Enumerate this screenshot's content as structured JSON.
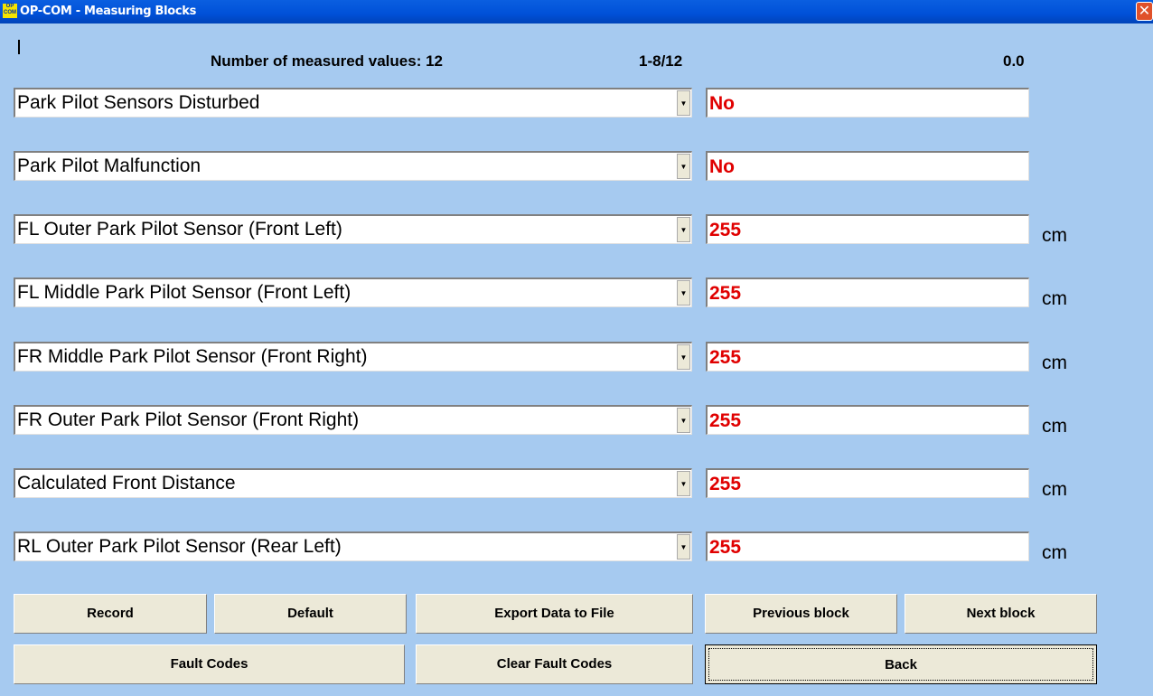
{
  "window": {
    "title": "OP-COM - Measuring Blocks",
    "icon_text": "OP COM",
    "close_icon": "close-icon"
  },
  "header": {
    "count_label": "Number of measured values: 12",
    "page_range": "1-8/12",
    "reading": "0.0"
  },
  "rows": [
    {
      "label": "Park Pilot Sensors Disturbed",
      "value": "No",
      "unit": ""
    },
    {
      "label": "Park Pilot Malfunction",
      "value": "No",
      "unit": ""
    },
    {
      "label": "FL Outer Park Pilot Sensor (Front Left)",
      "value": "255",
      "unit": "cm"
    },
    {
      "label": "FL Middle Park Pilot Sensor (Front Left)",
      "value": "255",
      "unit": "cm"
    },
    {
      "label": "FR Middle Park Pilot Sensor (Front Right)",
      "value": "255",
      "unit": "cm"
    },
    {
      "label": "FR Outer Park Pilot Sensor (Front Right)",
      "value": "255",
      "unit": "cm"
    },
    {
      "label": "Calculated Front Distance",
      "value": "255",
      "unit": "cm"
    },
    {
      "label": "RL Outer Park Pilot Sensor (Rear Left)",
      "value": "255",
      "unit": "cm"
    }
  ],
  "buttons": {
    "record": "Record",
    "default": "Default",
    "export": "Export Data to File",
    "previous": "Previous block",
    "next": "Next block",
    "fault_codes": "Fault Codes",
    "clear_fault_codes": "Clear Fault Codes",
    "back": "Back"
  },
  "colors": {
    "background": "#a6caf0",
    "value_text": "#e00000",
    "button": "#ece9d8"
  }
}
